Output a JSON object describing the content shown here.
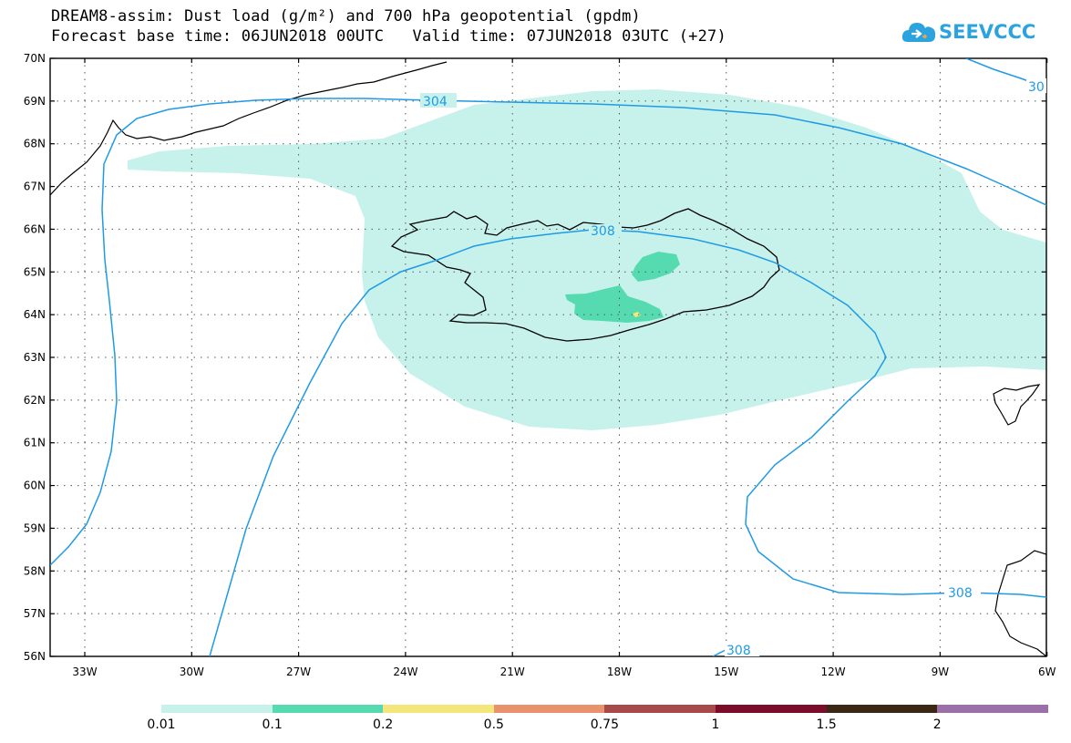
{
  "header": {
    "title_line1": "DREAM8-assim: Dust load (g/m²) and 700 hPa geopotential (gpdm)",
    "title_line2": "Forecast base time: 06JUN2018 00UTC   Valid time: 07JUN2018 03UTC (+27)"
  },
  "logo": {
    "text": "SEEVCCC",
    "icon": "cloud-icon",
    "color": "#2aa3df"
  },
  "map": {
    "lat_labels": [
      "70N",
      "69N",
      "68N",
      "67N",
      "66N",
      "65N",
      "64N",
      "63N",
      "62N",
      "61N",
      "60N",
      "59N",
      "58N",
      "57N",
      "56N"
    ],
    "lon_labels": [
      "33W",
      "30W",
      "27W",
      "24W",
      "21W",
      "18W",
      "15W",
      "12W",
      "9W",
      "6W"
    ],
    "contour_labels": {
      "top": "304",
      "top_right": "30",
      "mid": "308",
      "right": "308",
      "bottom": "308"
    },
    "contour_color": "#1f9ae6",
    "coastline_color": "#000000"
  },
  "legend": {
    "labels": [
      "0.01",
      "0.1",
      "0.2",
      "0.5",
      "0.75",
      "1",
      "1.5",
      "2"
    ],
    "colors": [
      "#c7f2ec",
      "#56dbb0",
      "#f3e67a",
      "#e8936d",
      "#a84a4a",
      "#7a0d2a",
      "#3b2814",
      "#9b6fa8"
    ]
  }
}
